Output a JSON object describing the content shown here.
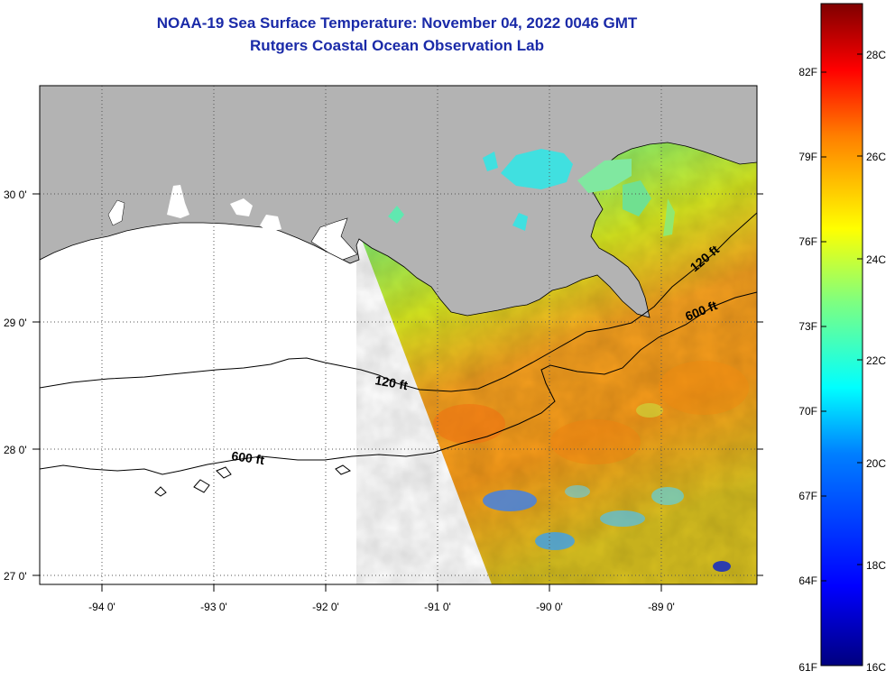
{
  "header": {
    "title": "NOAA-19 Sea Surface Temperature:  November 04, 2022 0046 GMT",
    "subtitle": "Rutgers Coastal Ocean Observation Lab"
  },
  "map": {
    "lat_labels": [
      "30 0'",
      "29 0'",
      "28 0'",
      "27 0'"
    ],
    "lon_labels": [
      "-94 0'",
      "-93 0'",
      "-92 0'",
      "-91 0'",
      "-90 0'",
      "-89 0'"
    ],
    "contours": [
      {
        "label": "120 ft"
      },
      {
        "label": "600 ft"
      },
      {
        "label": "120 ft"
      },
      {
        "label": "600 ft"
      }
    ]
  },
  "colorbar": {
    "fahrenheit": [
      "82F",
      "79F",
      "76F",
      "73F",
      "70F",
      "67F",
      "64F",
      "61F"
    ],
    "celsius": [
      "28C",
      "26C",
      "24C",
      "22C",
      "20C",
      "18C",
      "16C"
    ],
    "colors": [
      "#00007f",
      "#0000ff",
      "#007fff",
      "#00ffff",
      "#7fff7f",
      "#ffff00",
      "#ff7f00",
      "#ff0000",
      "#7f0000"
    ]
  }
}
